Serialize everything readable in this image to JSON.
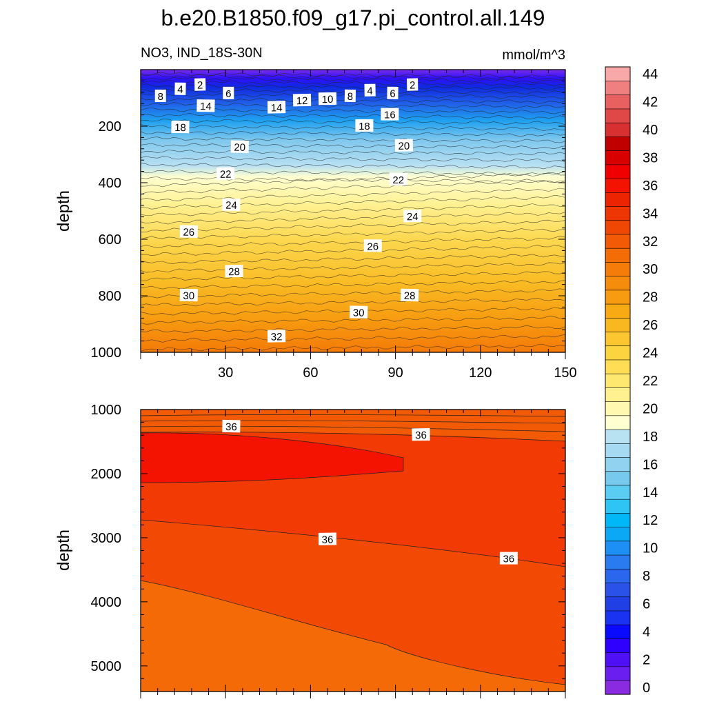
{
  "title": "b.e20.B1850.f09_g17.pi_control.all.149",
  "subtitle_left": "NO3, IND_18S-30N",
  "subtitle_right": "mmol/m^3",
  "chart_data": [
    {
      "type": "contour",
      "panel": "upper",
      "ylabel": "depth",
      "xlim": [
        0,
        150
      ],
      "ylim": [
        1000,
        0
      ],
      "x_ticks": [
        "30",
        "60",
        "90",
        "120",
        "150"
      ],
      "y_ticks": [
        "200",
        "400",
        "600",
        "800",
        "1000"
      ],
      "contour_labels": [
        {
          "text": "2",
          "x": 21,
          "y": 55
        },
        {
          "text": "4",
          "x": 14,
          "y": 70
        },
        {
          "text": "6",
          "x": 31,
          "y": 85
        },
        {
          "text": "8",
          "x": 7,
          "y": 95
        },
        {
          "text": "14",
          "x": 23,
          "y": 130
        },
        {
          "text": "14",
          "x": 48,
          "y": 135
        },
        {
          "text": "12",
          "x": 57,
          "y": 110
        },
        {
          "text": "10",
          "x": 66,
          "y": 105
        },
        {
          "text": "8",
          "x": 74,
          "y": 95
        },
        {
          "text": "4",
          "x": 81,
          "y": 75
        },
        {
          "text": "6",
          "x": 89,
          "y": 85
        },
        {
          "text": "2",
          "x": 96,
          "y": 55
        },
        {
          "text": "16",
          "x": 88,
          "y": 160
        },
        {
          "text": "18",
          "x": 14,
          "y": 205
        },
        {
          "text": "18",
          "x": 79,
          "y": 200
        },
        {
          "text": "20",
          "x": 35,
          "y": 275
        },
        {
          "text": "20",
          "x": 93,
          "y": 270
        },
        {
          "text": "22",
          "x": 30,
          "y": 370
        },
        {
          "text": "22",
          "x": 91,
          "y": 390
        },
        {
          "text": "24",
          "x": 32,
          "y": 480
        },
        {
          "text": "24",
          "x": 96,
          "y": 520
        },
        {
          "text": "26",
          "x": 17,
          "y": 575
        },
        {
          "text": "26",
          "x": 82,
          "y": 625
        },
        {
          "text": "28",
          "x": 33,
          "y": 715
        },
        {
          "text": "28",
          "x": 95,
          "y": 800
        },
        {
          "text": "30",
          "x": 17,
          "y": 800
        },
        {
          "text": "30",
          "x": 77,
          "y": 860
        },
        {
          "text": "32",
          "x": 48,
          "y": 945
        }
      ]
    },
    {
      "type": "contour",
      "panel": "lower",
      "ylabel": "depth",
      "xlim": [
        0,
        150
      ],
      "ylim": [
        5400,
        1000
      ],
      "y_ticks": [
        "1000",
        "2000",
        "3000",
        "4000",
        "5000"
      ],
      "contour_labels": [
        {
          "text": "36",
          "x": 32,
          "y": 1270
        },
        {
          "text": "36",
          "x": 99,
          "y": 1400
        },
        {
          "text": "36",
          "x": 66,
          "y": 3030
        },
        {
          "text": "36",
          "x": 130,
          "y": 3330
        }
      ]
    }
  ],
  "colorbar": {
    "labels": [
      "0",
      "2",
      "4",
      "6",
      "8",
      "10",
      "12",
      "14",
      "16",
      "18",
      "20",
      "22",
      "24",
      "26",
      "28",
      "30",
      "32",
      "34",
      "36",
      "38",
      "40",
      "42",
      "44"
    ],
    "colors": [
      "#8a2be2",
      "#6a1ef0",
      "#5010f5",
      "#3000ff",
      "#0a0aff",
      "#1a32f2",
      "#2040e6",
      "#2a52e8",
      "#2a66ee",
      "#2a7af0",
      "#1e90f5",
      "#0aa8f5",
      "#00b8f8",
      "#2ec4f4",
      "#5ccdf2",
      "#78c9ee",
      "#90d2f0",
      "#a6daf2",
      "#b8e2f2",
      "#ffffd2",
      "#fff8b0",
      "#fff090",
      "#ffe870",
      "#ffde55",
      "#fcd440",
      "#fbc630",
      "#f9b820",
      "#f8aa15",
      "#f79c10",
      "#f68c0c",
      "#f57c08",
      "#f46c06",
      "#f25a05",
      "#f04804",
      "#ee3604",
      "#ec2402",
      "#f41200",
      "#f00000",
      "#d80000",
      "#c00000",
      "#d83030",
      "#e04848",
      "#e86060",
      "#f08080",
      "#f8a8a8"
    ]
  }
}
